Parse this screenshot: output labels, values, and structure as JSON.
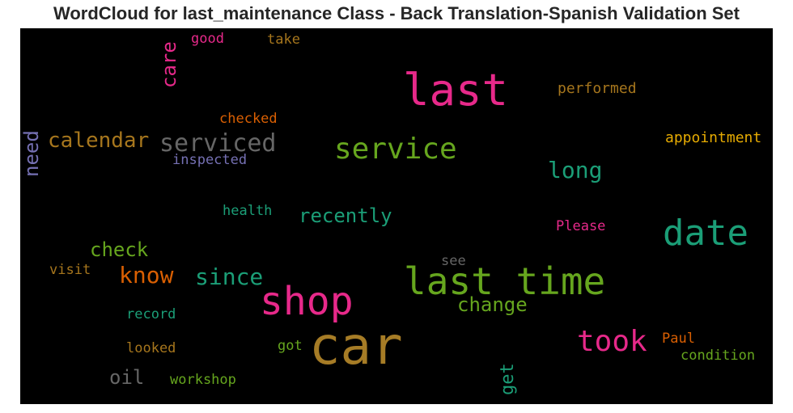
{
  "chart_data": {
    "type": "wordcloud",
    "title": "WordCloud for last_maintenance Class - Back Translation-Spanish Validation Set",
    "background": "#000000",
    "words": [
      {
        "text": "car",
        "color": "#a67c26"
      },
      {
        "text": "last",
        "color": "#e7298a"
      },
      {
        "text": "last time",
        "color": "#66a61e"
      },
      {
        "text": "shop",
        "color": "#e7298a"
      },
      {
        "text": "date",
        "color": "#1b9e77"
      },
      {
        "text": "service",
        "color": "#66a61e"
      },
      {
        "text": "took",
        "color": "#e7298a"
      },
      {
        "text": "serviced",
        "color": "#666666"
      },
      {
        "text": "since",
        "color": "#1b9e77"
      },
      {
        "text": "calendar",
        "color": "#a6761d"
      },
      {
        "text": "know",
        "color": "#d95f02"
      },
      {
        "text": "long",
        "color": "#1b9e77"
      },
      {
        "text": "recently",
        "color": "#1b9e77"
      },
      {
        "text": "check",
        "color": "#66a61e"
      },
      {
        "text": "change",
        "color": "#66a61e"
      },
      {
        "text": "care",
        "color": "#e7298a"
      },
      {
        "text": "need",
        "color": "#7570b3"
      },
      {
        "text": "oil",
        "color": "#666666"
      },
      {
        "text": "get",
        "color": "#1b9e77"
      },
      {
        "text": "performed",
        "color": "#a6761d"
      },
      {
        "text": "appointment",
        "color": "#e6ab02"
      },
      {
        "text": "checked",
        "color": "#d95f02"
      },
      {
        "text": "inspected",
        "color": "#7570b3"
      },
      {
        "text": "health",
        "color": "#1b9e77"
      },
      {
        "text": "Please",
        "color": "#e7298a"
      },
      {
        "text": "see",
        "color": "#666666"
      },
      {
        "text": "visit",
        "color": "#a6761d"
      },
      {
        "text": "record",
        "color": "#1b9e77"
      },
      {
        "text": "looked",
        "color": "#a6761d"
      },
      {
        "text": "got",
        "color": "#66a61e"
      },
      {
        "text": "Paul",
        "color": "#d95f02"
      },
      {
        "text": "condition",
        "color": "#66a61e"
      },
      {
        "text": "workshop",
        "color": "#66a61e"
      },
      {
        "text": "good",
        "color": "#e7298a"
      },
      {
        "text": "take",
        "color": "#a6761d"
      }
    ]
  }
}
